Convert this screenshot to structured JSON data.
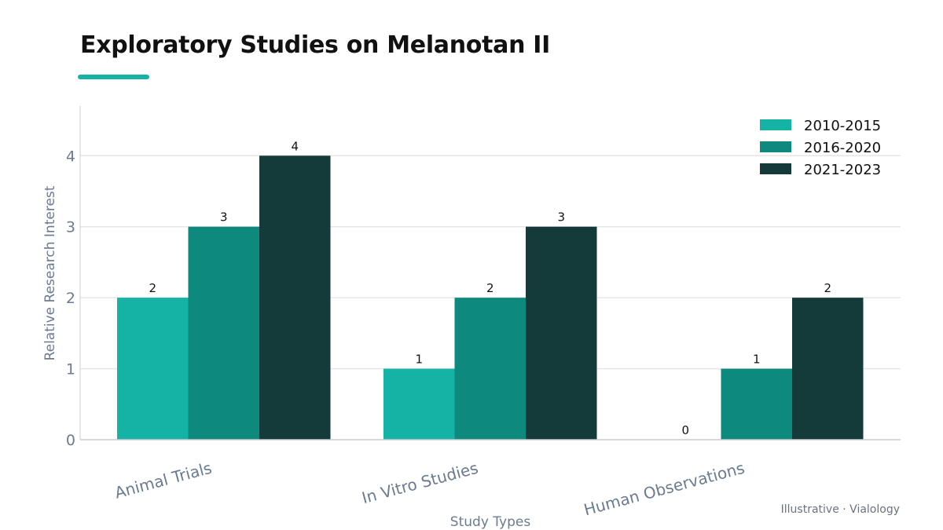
{
  "header": {
    "title": "Exploratory Studies on Melanotan II"
  },
  "footer": {
    "credit": "Illustrative · Vialology"
  },
  "colors": {
    "accent": "#14b3a5",
    "grid": "#e6e6e6",
    "axis": "#cccccc"
  },
  "chart_data": {
    "type": "bar",
    "title": "Exploratory Studies on Melanotan II",
    "xlabel": "Study Types",
    "ylabel": "Relative Research Interest",
    "categories": [
      "Animal Trials",
      "In Vitro Studies",
      "Human Observations"
    ],
    "series": [
      {
        "name": "2010-2015",
        "color": "#14b3a5",
        "values": [
          2,
          1,
          0
        ]
      },
      {
        "name": "2016-2020",
        "color": "#0d8a7d",
        "values": [
          3,
          2,
          1
        ]
      },
      {
        "name": "2021-2023",
        "color": "#143b3a",
        "values": [
          4,
          3,
          2
        ]
      }
    ],
    "ylim": [
      0,
      4.7
    ],
    "yticks": [
      0,
      1,
      2,
      3,
      4
    ],
    "grid": true,
    "legend_position": "top-right",
    "data_labels": true
  }
}
